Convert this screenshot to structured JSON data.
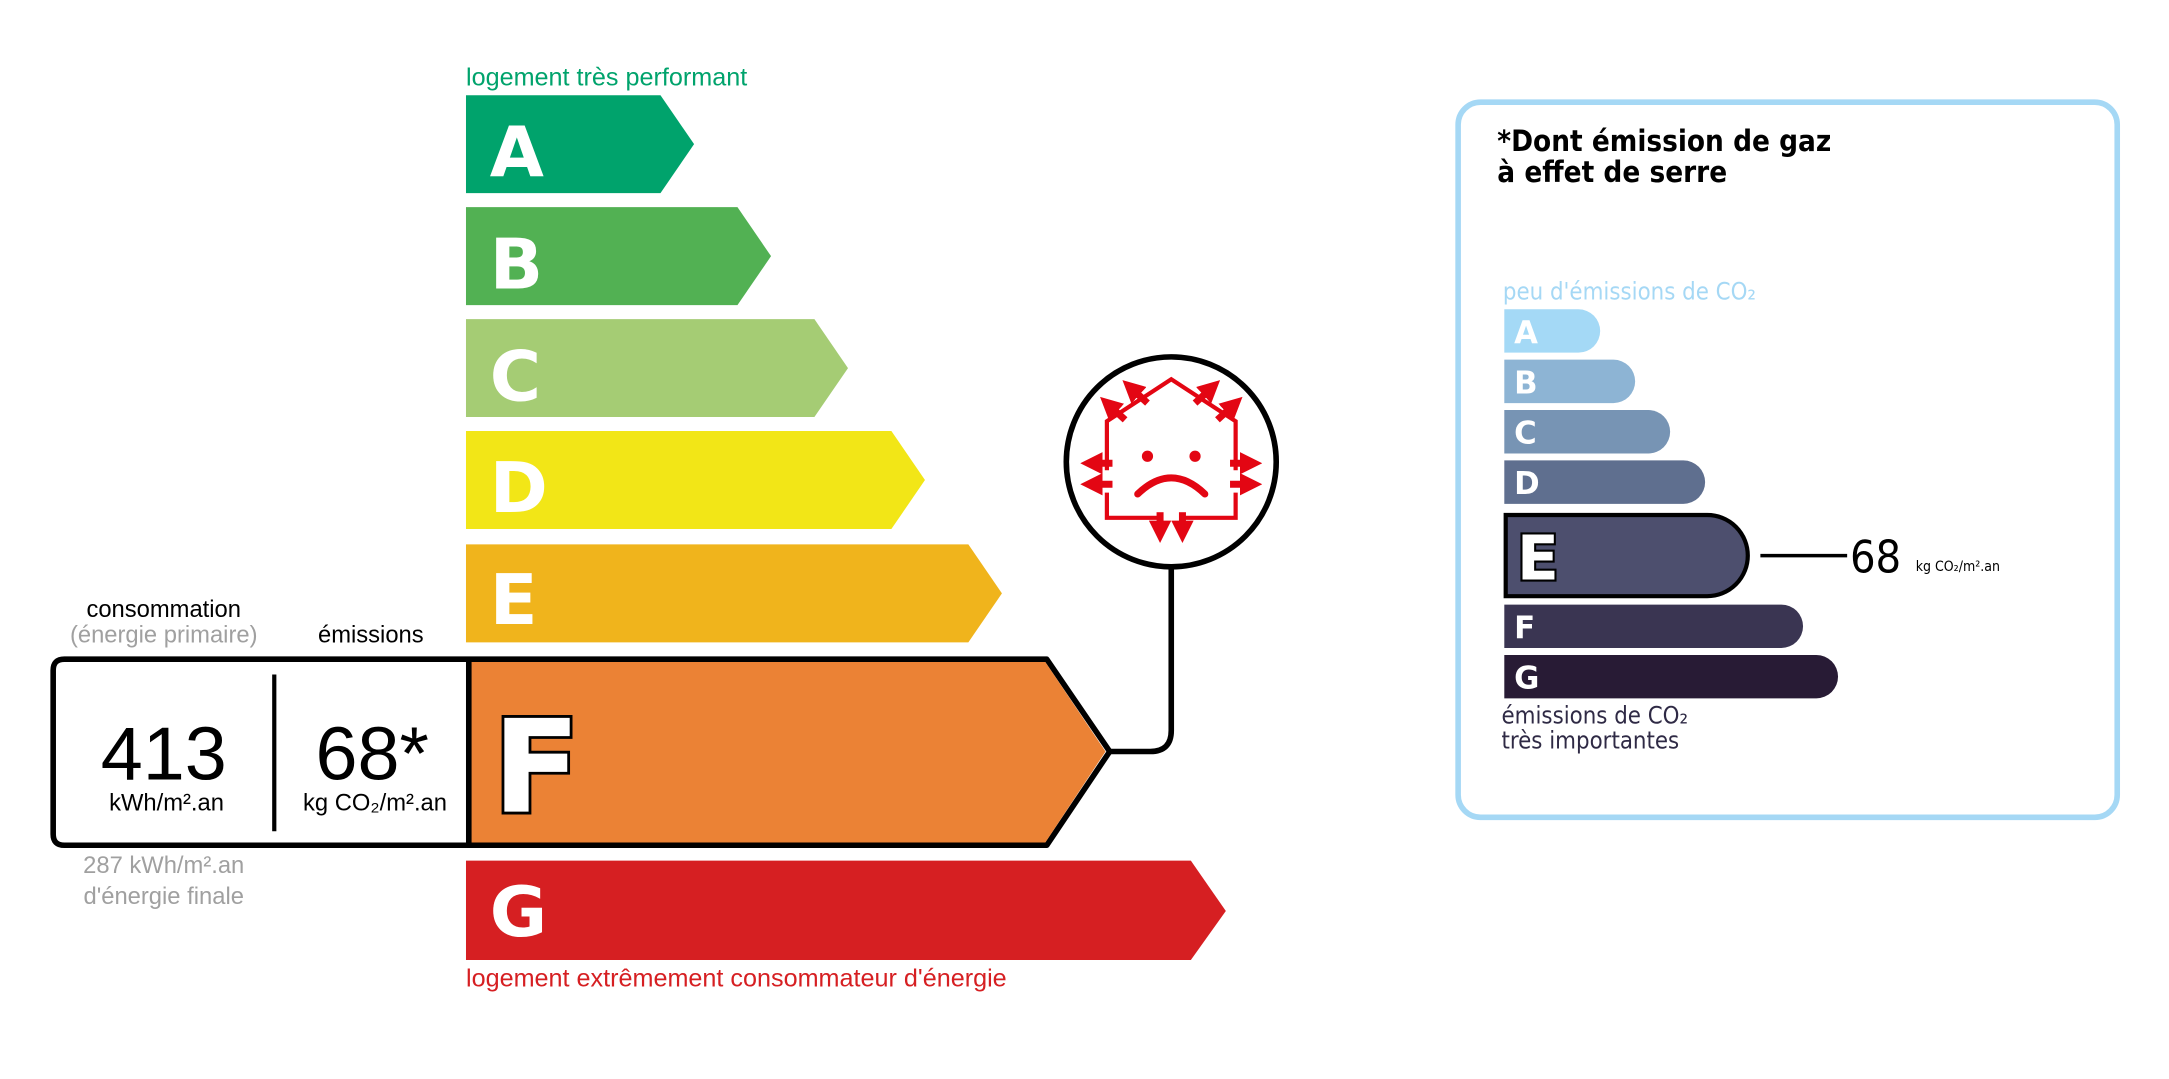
{
  "energy_label": {
    "top_caption": "logement très performant",
    "bottom_caption": "logement extrêmement consommateur d'énergie",
    "classes": [
      {
        "letter": "A",
        "color": "#00a36c"
      },
      {
        "letter": "B",
        "color": "#52b153"
      },
      {
        "letter": "C",
        "color": "#a5cc74"
      },
      {
        "letter": "D",
        "color": "#f2e617"
      },
      {
        "letter": "E",
        "color": "#f0b41c"
      },
      {
        "letter": "F",
        "color": "#eb8235"
      },
      {
        "letter": "G",
        "color": "#d61f22"
      }
    ],
    "current_class": "F",
    "consumption_label": "consommation",
    "consumption_sublabel": "(énergie primaire)",
    "emissions_label": "émissions",
    "consumption_value": "413",
    "consumption_unit": "kWh/m².an",
    "emissions_value": "68*",
    "emissions_unit": "kg CO₂/m².an",
    "final_energy_value": "287 kWh/m².an",
    "final_energy_label": "d'énergie finale",
    "icon": "poorly-insulated-house-sad-face-icon",
    "icon_color": "#e30613"
  },
  "ghg_panel": {
    "title_line1": "*Dont émission de gaz",
    "title_line2": "à effet de serre",
    "top_caption": "peu d'émissions de CO₂",
    "bottom_caption_line1": "émissions de CO₂",
    "bottom_caption_line2": "très importantes",
    "border_color": "#a5d8f5",
    "classes": [
      {
        "letter": "A",
        "color": "#a4d9f6"
      },
      {
        "letter": "B",
        "color": "#8db4d4"
      },
      {
        "letter": "C",
        "color": "#7794b4"
      },
      {
        "letter": "D",
        "color": "#5f6f8f"
      },
      {
        "letter": "E",
        "color": "#4d4f6e"
      },
      {
        "letter": "F",
        "color": "#3a3552"
      },
      {
        "letter": "G",
        "color": "#281b35"
      }
    ],
    "current_class": "E",
    "value": "68",
    "unit": "kg CO₂/m².an"
  }
}
